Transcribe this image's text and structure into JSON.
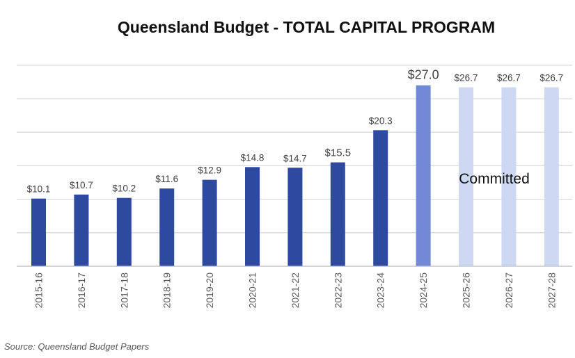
{
  "chart_data": {
    "type": "bar",
    "title": "Queensland Budget - TOTAL CAPITAL PROGRAM",
    "xlabel": "",
    "ylabel": "",
    "categories": [
      "2015-16",
      "2016-17",
      "2017-18",
      "2018-19",
      "2019-20",
      "2020-21",
      "2021-22",
      "2022-23",
      "2023-24",
      "2024-25",
      "2025-26",
      "2026-27",
      "2027-28"
    ],
    "values": [
      10.1,
      10.7,
      10.2,
      11.6,
      12.9,
      14.8,
      14.7,
      15.5,
      20.3,
      27.0,
      26.7,
      26.7,
      26.7
    ],
    "value_labels": [
      "$10.1",
      "$10.7",
      "$10.2",
      "$11.6",
      "$12.9",
      "$14.8",
      "$14.7",
      "$15.5",
      "$20.3",
      "$27.0",
      "$26.7",
      "$26.7",
      "$26.7"
    ],
    "ylim": [
      0,
      30
    ],
    "grid": true,
    "show_y_tick_labels": false,
    "bar_colors": [
      "#2e4a9e",
      "#2e4a9e",
      "#2e4a9e",
      "#2e4a9e",
      "#2e4a9e",
      "#2e4a9e",
      "#2e4a9e",
      "#2e4a9e",
      "#2e4a9e",
      "#7289d6",
      "#cdd8f3",
      "#cdd8f3",
      "#cdd8f3"
    ],
    "annotation": "Committed",
    "source": "Source: Queensland Budget Papers"
  }
}
